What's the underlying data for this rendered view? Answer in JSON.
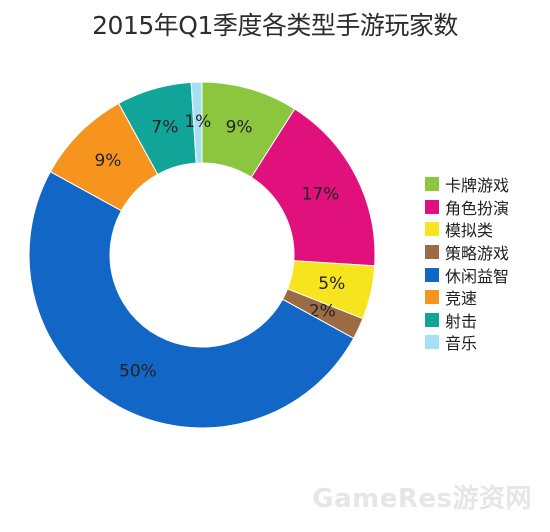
{
  "chart_data": {
    "type": "pie",
    "variant": "donut",
    "title": "2015年Q1季度各类型手游玩家数",
    "categories": [
      "卡牌游戏",
      "角色扮演",
      "模拟类",
      "策略游戏",
      "休闲益智",
      "竞速",
      "射击",
      "音乐"
    ],
    "values": [
      9,
      17,
      5,
      2,
      50,
      9,
      7,
      1
    ],
    "value_labels": [
      "9%",
      "17%",
      "5%",
      "2%",
      "50%",
      "9%",
      "7%",
      "1%"
    ],
    "colors": [
      "#8cc63f",
      "#e0117c",
      "#f5e41e",
      "#9b6b43",
      "#1267c6",
      "#f7941d",
      "#11a59a",
      "#a6e1f3"
    ],
    "legend_position": "right",
    "start": "top"
  },
  "watermark": "GameRes游资网"
}
